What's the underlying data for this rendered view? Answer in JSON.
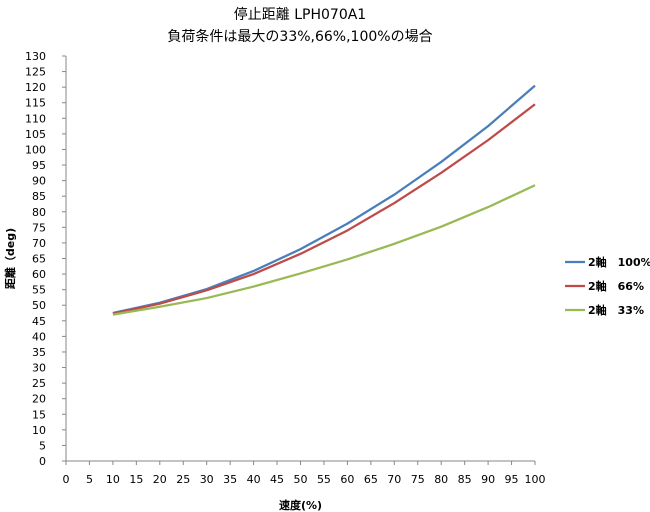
{
  "chart_data": {
    "type": "line",
    "title": "停止距離 LPH070A1",
    "subtitle": "負荷条件は最大の33%,66%,100%の場合",
    "xlabel": "速度(%)",
    "ylabel": "距離（deg)",
    "xlim": [
      0,
      100
    ],
    "ylim": [
      0,
      130
    ],
    "x_ticks": [
      "0",
      "5",
      "10",
      "15",
      "20",
      "25",
      "30",
      "35",
      "40",
      "45",
      "50",
      "55",
      "60",
      "65",
      "70",
      "75",
      "80",
      "85",
      "90",
      "95",
      "100"
    ],
    "y_ticks": [
      "0",
      "5",
      "10",
      "15",
      "20",
      "25",
      "30",
      "35",
      "40",
      "45",
      "50",
      "55",
      "60",
      "65",
      "70",
      "75",
      "80",
      "85",
      "90",
      "95",
      "100",
      "105",
      "110",
      "115",
      "120",
      "125",
      "130"
    ],
    "x": [
      10,
      20,
      30,
      40,
      50,
      60,
      70,
      80,
      90,
      100
    ],
    "series": [
      {
        "name": "2軸　100%",
        "color": "#4a7ebb",
        "values": [
          47.5,
          50.8,
          55.2,
          61.0,
          68.0,
          76.2,
          85.5,
          96.0,
          107.5,
          120.5
        ]
      },
      {
        "name": "2軸　66%",
        "color": "#be4b48",
        "values": [
          47.3,
          50.5,
          54.8,
          60.0,
          66.5,
          74.0,
          82.8,
          92.5,
          103.0,
          114.5
        ]
      },
      {
        "name": "2軸　33%",
        "color": "#98b954",
        "values": [
          47.0,
          49.5,
          52.3,
          56.0,
          60.2,
          64.7,
          69.7,
          75.2,
          81.5,
          88.5
        ]
      }
    ],
    "grid": "horizontal-none",
    "legend_position": "right"
  }
}
